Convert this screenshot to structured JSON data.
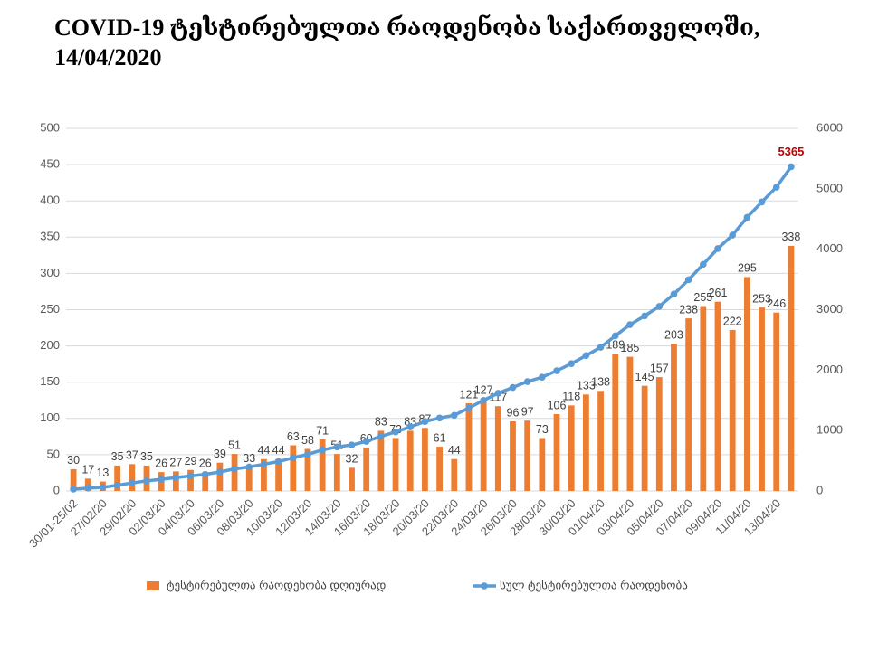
{
  "chart_data": {
    "type": "bar_line",
    "title": [
      "COVID-19 ტესტირებულთა რაოდენობა საქართველოში,",
      "14/04/2020"
    ],
    "categories": [
      "30/01-25/02",
      null,
      "27/02/20",
      null,
      "29/02/20",
      null,
      "02/03/20",
      null,
      "04/03/20",
      null,
      "06/03/20",
      null,
      "08/03/20",
      null,
      "10/03/20",
      null,
      "12/03/20",
      null,
      "14/03/20",
      null,
      "16/03/20",
      null,
      "18/03/20",
      null,
      "20/03/20",
      null,
      "22/03/20",
      null,
      "24/03/20",
      null,
      "26/03/20",
      null,
      "28/03/20",
      null,
      "30/03/20",
      null,
      "01/04/20",
      null,
      "03/04/20",
      null,
      "05/04/20",
      null,
      "07/04/20",
      null,
      "09/04/20",
      null,
      "11/04/20",
      null,
      "13/04/20",
      null
    ],
    "series": [
      {
        "name": "ტესტირებულთა რაოდენობა დღიურად",
        "type": "bar",
        "color": "#ed7d31",
        "values": [
          30,
          17,
          13,
          35,
          37,
          35,
          26,
          27,
          29,
          26,
          39,
          51,
          33,
          44,
          44,
          63,
          58,
          71,
          51,
          32,
          60,
          83,
          73,
          83,
          87,
          61,
          44,
          121,
          127,
          117,
          96,
          97,
          73,
          106,
          118,
          133,
          138,
          189,
          185,
          145,
          157,
          203,
          238,
          255,
          261,
          222,
          295,
          253,
          246,
          338
        ]
      },
      {
        "name": "სულ ტესტირებულთა რაოდენობა",
        "type": "line",
        "axis": "y2",
        "color": "#5b9bd5",
        "values": [
          30,
          47,
          60,
          95,
          132,
          167,
          193,
          220,
          249,
          275,
          314,
          365,
          398,
          442,
          486,
          549,
          607,
          678,
          729,
          761,
          821,
          904,
          977,
          1060,
          1147,
          1208,
          1252,
          1373,
          1500,
          1617,
          1713,
          1810,
          1883,
          1989,
          2107,
          2240,
          2378,
          2567,
          2752,
          2897,
          3054,
          3257,
          3495,
          3750,
          4011,
          4233,
          4528,
          4781,
          5027,
          5365
        ]
      }
    ],
    "ylim": [
      0,
      500
    ],
    "yticks": [
      0,
      50,
      100,
      150,
      200,
      250,
      300,
      350,
      400,
      450,
      500
    ],
    "y2lim": [
      0,
      6000
    ],
    "y2ticks": [
      0,
      1000,
      2000,
      3000,
      4000,
      5000,
      6000
    ],
    "grid": true,
    "legend": "bottom"
  }
}
